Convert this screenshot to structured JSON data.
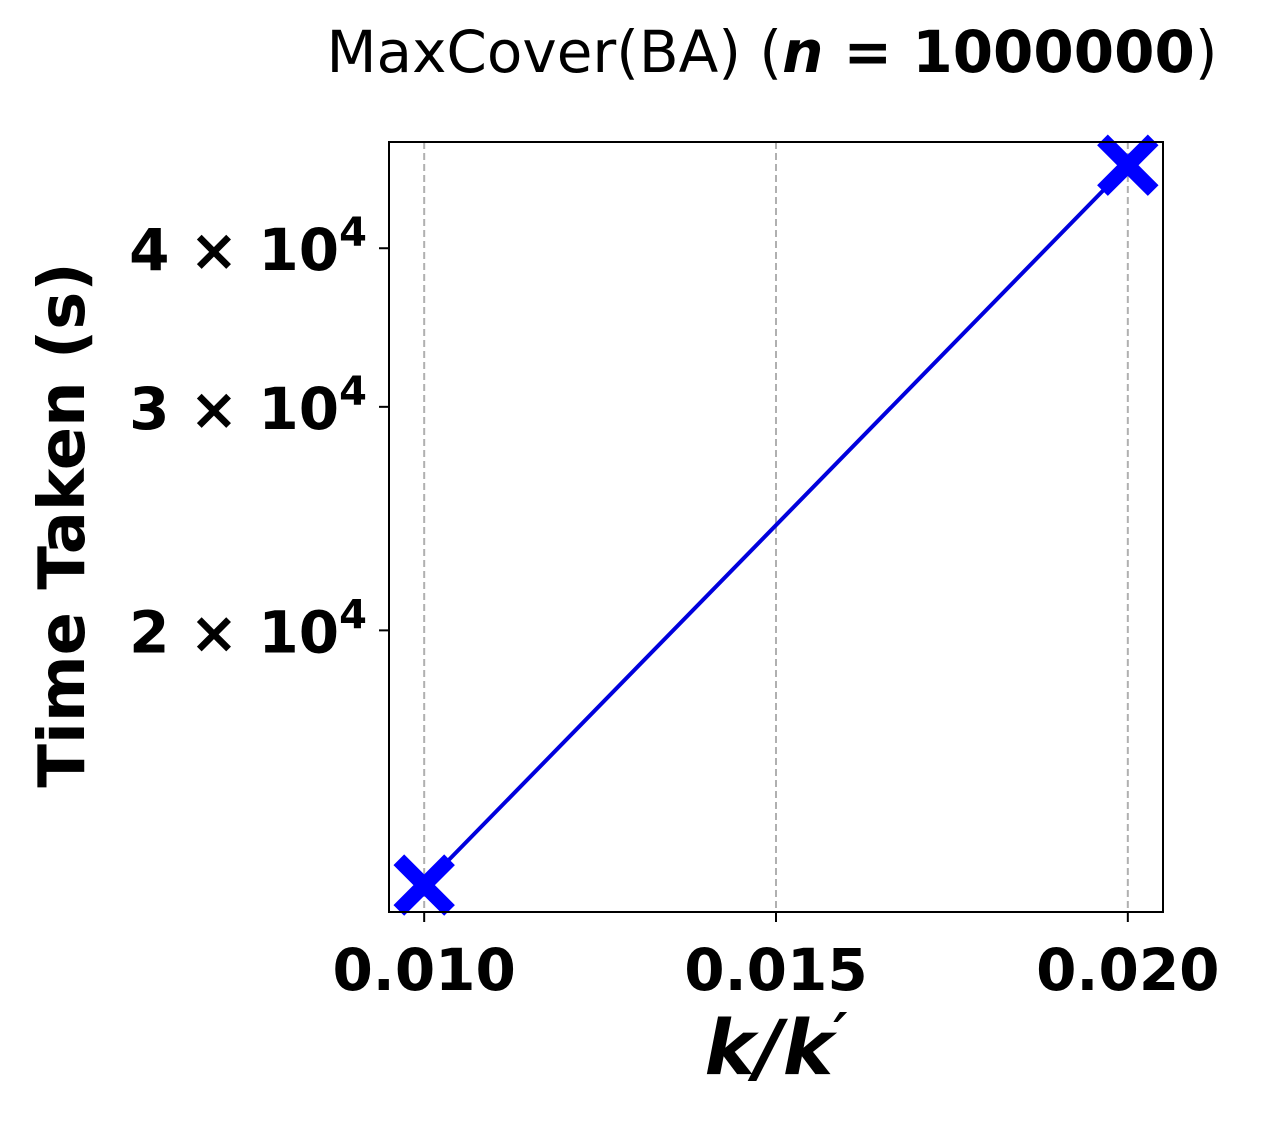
{
  "chart_data": {
    "type": "line",
    "title": {
      "prefix": "MaxCover(BA) (",
      "var": "n",
      "eq": " = ",
      "value": "1000000",
      "suffix": ")"
    },
    "xlabel": {
      "a": "k",
      "sep": "/",
      "b": "k",
      "prime": "′"
    },
    "ylabel": "Time Taken (s)",
    "yscale": "log",
    "xlim": [
      0.0095,
      0.0205
    ],
    "ylim": [
      12000,
      48500
    ],
    "x_ticks": [
      {
        "value": 0.01,
        "label": "0.010"
      },
      {
        "value": 0.015,
        "label": "0.015"
      },
      {
        "value": 0.02,
        "label": "0.020"
      }
    ],
    "y_ticks": [
      {
        "value": 20000,
        "mantissa": "2",
        "times": "×",
        "base": "10",
        "exp": "4"
      },
      {
        "value": 30000,
        "mantissa": "3",
        "times": "×",
        "base": "10",
        "exp": "4"
      },
      {
        "value": 40000,
        "mantissa": "4",
        "times": "×",
        "base": "10",
        "exp": "4"
      }
    ],
    "grid": {
      "x": true,
      "y": false,
      "style": "dashed"
    },
    "series": [
      {
        "color": "#0000dd",
        "marker_color": "#0000ff",
        "marker": "X",
        "points": [
          {
            "x": 0.01,
            "y": 12600
          },
          {
            "x": 0.02,
            "y": 46500
          }
        ]
      }
    ]
  }
}
